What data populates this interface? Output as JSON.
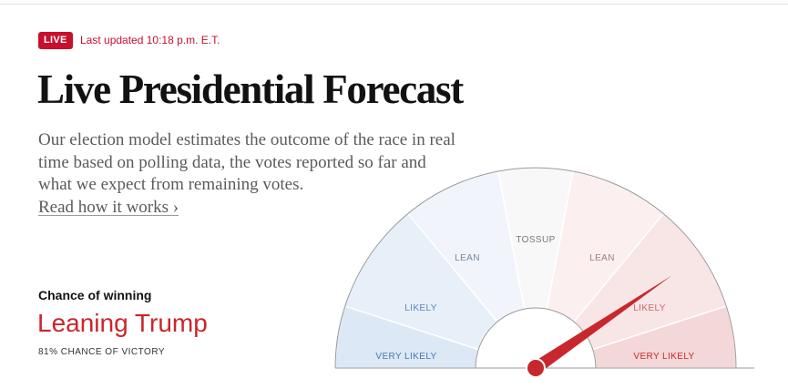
{
  "header": {
    "live_badge": "LIVE",
    "last_updated": "Last updated 10:18 p.m. E.T."
  },
  "title": "Live Presidential Forecast",
  "description": "Our election model estimates the outcome of the race in real time based on polling data, the votes reported so far and what we expect from remaining votes.",
  "read_more_link": "Read how it works ›",
  "result": {
    "label": "Chance of winning",
    "headline": "Leaning Trump",
    "chance_text": "81% CHANCE OF VICTORY",
    "chance_value": 81
  },
  "gauge": {
    "segments": [
      {
        "label": "VERY LIKELY",
        "fill": "#dce8f5",
        "text_color": "#4a78b0"
      },
      {
        "label": "LIKELY",
        "fill": "#e7eff8",
        "text_color": "#5a86ba"
      },
      {
        "label": "LEAN",
        "fill": "#f1f5fb",
        "text_color": "#7b8696"
      },
      {
        "label": "TOSSUP",
        "fill": "#f8f8f8",
        "text_color": "#777777"
      },
      {
        "label": "LEAN",
        "fill": "#fbeff0",
        "text_color": "#a07c80"
      },
      {
        "label": "LIKELY",
        "fill": "#f8e6e7",
        "text_color": "#d0626a"
      },
      {
        "label": "VERY LIKELY",
        "fill": "#f4d7d8",
        "text_color": "#c8272d"
      }
    ],
    "needle_color": "#c8272d"
  }
}
